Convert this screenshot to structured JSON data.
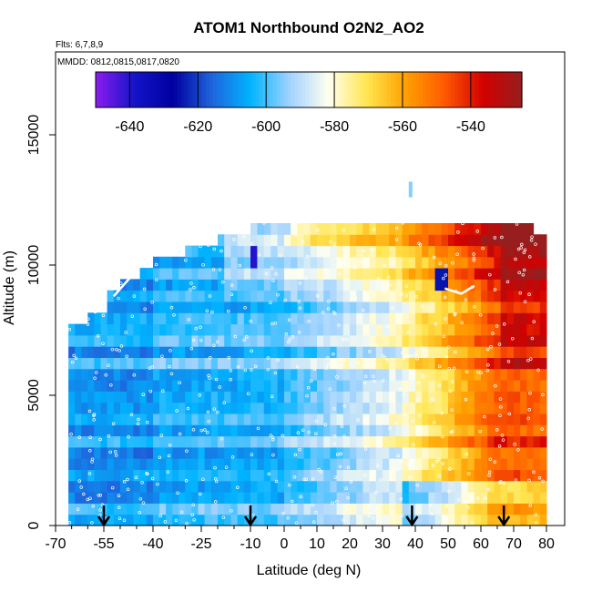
{
  "chart_data": {
    "type": "heatmap",
    "title": "ATOM1 Northbound O2N2_AO2",
    "subtitle_flights": "Flts: 6,7,8,9",
    "subtitle_dates": "MMDD: 0812,0815,0817,0820",
    "xlabel": "Latitude (deg N)",
    "ylabel": "Altitude (m)",
    "xlim": [
      -70,
      80
    ],
    "ylim": [
      0,
      18000
    ],
    "x_ticks": [
      -70,
      -55,
      -40,
      -25,
      -10,
      0,
      10,
      20,
      30,
      40,
      50,
      60,
      70,
      80
    ],
    "x_tick_labels": [
      "-70",
      "-55",
      "-40",
      "-25",
      "-10",
      "0",
      "10",
      "20",
      "30",
      "40",
      "50",
      "60",
      "70",
      "80"
    ],
    "y_ticks": [
      0,
      5000,
      10000,
      15000
    ],
    "y_tick_labels": [
      "0",
      "5000",
      "10000",
      "15000"
    ],
    "colorbar": {
      "range": [
        -650,
        -525
      ],
      "ticks": [
        -640,
        -620,
        -600,
        -580,
        -560,
        -540
      ],
      "tick_labels": [
        "-640",
        "-620",
        "-600",
        "-580",
        "-560",
        "-540"
      ],
      "colors": [
        "#8c1cf0",
        "#1414c8",
        "#0000a0",
        "#1e64dc",
        "#00b4ff",
        "#a0d2ff",
        "#fffff0",
        "#ffe650",
        "#ffa000",
        "#ff5a00",
        "#d20000",
        "#961e1e"
      ]
    },
    "flight_arrows_latitude": [
      -55,
      -10,
      39,
      67
    ],
    "approx_profiles": [
      {
        "lat_range": [
          -70,
          -40
        ],
        "alt_range": [
          0,
          8000
        ],
        "value": -605
      },
      {
        "lat_range": [
          -40,
          0
        ],
        "alt_range": [
          0,
          10000
        ],
        "value": -600
      },
      {
        "lat_range": [
          0,
          30
        ],
        "alt_range": [
          0,
          12000
        ],
        "value": -590
      },
      {
        "lat_range": [
          30,
          55
        ],
        "alt_range": [
          0,
          12000
        ],
        "value": -570
      },
      {
        "lat_range": [
          55,
          80
        ],
        "alt_range": [
          0,
          12000
        ],
        "value": -545
      }
    ]
  }
}
